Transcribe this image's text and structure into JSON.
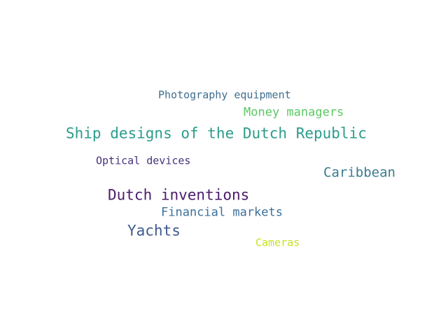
{
  "words": [
    {
      "text": "Photography equipment",
      "color": "#3f6f8f"
    },
    {
      "text": "Money managers",
      "color": "#5cc863"
    },
    {
      "text": "Ship designs of the Dutch Republic",
      "color": "#2a9d8c"
    },
    {
      "text": "Optical devices",
      "color": "#46327e"
    },
    {
      "text": "Caribbean",
      "color": "#3b7c8f"
    },
    {
      "text": "Dutch inventions",
      "color": "#4b1d6b"
    },
    {
      "text": "Financial markets",
      "color": "#3d6f9b"
    },
    {
      "text": "Yachts",
      "color": "#3e5a8e"
    },
    {
      "text": "Cameras",
      "color": "#c8e020"
    }
  ]
}
